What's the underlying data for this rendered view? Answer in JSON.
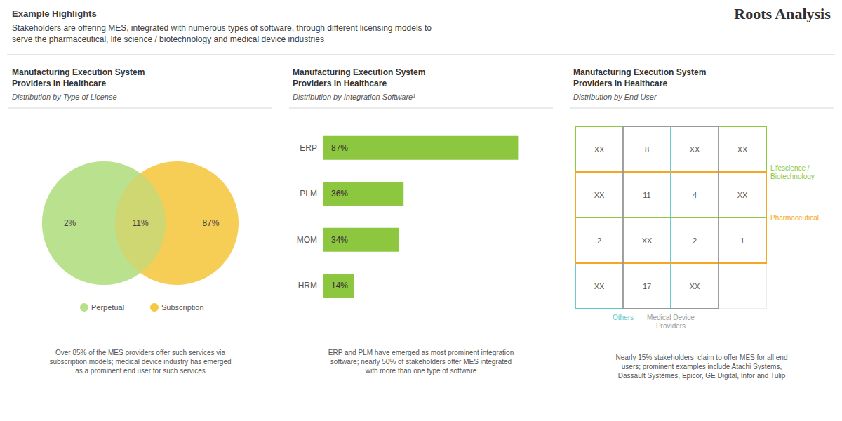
{
  "title": "Example Highlights",
  "subtitle": "Stakeholders are offering MES, integrated with numerous types of software, through different licensing models to\nserve the pharmaceutical, life science / biotechnology and medical device industries",
  "annotations": [
    "Roots Analysis"
  ],
  "chart_data": [
    {
      "type": "venn",
      "title": "Manufacturing Execution System\nProviders in Healthcare",
      "subtitle": "Distribution by Type of License",
      "values": [
        2,
        11,
        87
      ],
      "value_labels": [
        "2%",
        "11%",
        "87%"
      ],
      "series": [
        {
          "name": "Perpetual",
          "color": "#b8e08a"
        },
        {
          "name": "Subscription",
          "color": "#f5c842"
        }
      ],
      "annotations": [
        "Over 85% of the MES providers offer such services via\nsubscription models; medical device industry has emerged\nas a prominent end user for such services"
      ]
    },
    {
      "type": "bar",
      "orientation": "horizontal",
      "title": "Manufacturing Execution System\nProviders in Healthcare",
      "subtitle": "Distribution by Integration Software¹",
      "categories": [
        "ERP",
        "PLM",
        "MOM",
        "HRM"
      ],
      "values": [
        87,
        36,
        34,
        14
      ],
      "value_labels": [
        "87%",
        "36%",
        "34%",
        "14%"
      ],
      "data_labels": true,
      "color": "#8dc63f",
      "xlim": [
        0,
        100
      ],
      "grid": false,
      "tick_labels": "y",
      "annotations": [
        "ERP and PLM have emerged as most prominent integration\nsoftware; nearly 50% of stakeholders offer MES integrated\nwith more than one type of software"
      ]
    },
    {
      "type": "matrix",
      "title": "Manufacturing Execution System\nProviders in Healthcare",
      "subtitle": "Distribution by End User",
      "cells": [
        [
          "XX",
          "8",
          "XX",
          "XX"
        ],
        [
          "XX",
          "11",
          "4",
          "XX"
        ],
        [
          "2",
          "XX",
          "2",
          "1"
        ],
        [
          "XX",
          "17",
          "XX",
          null
        ]
      ],
      "series": [
        {
          "name": "Others",
          "color": "#5bc8c8",
          "cols": [
            0,
            1
          ]
        },
        {
          "name": "Lifescience /\nBiotechnology",
          "color": "#8dc63f",
          "rows": [
            0,
            1
          ]
        },
        {
          "name": "Pharmaceutical",
          "color": "#f5a623",
          "rows": [
            1,
            2
          ]
        },
        {
          "name": "Medical Device\nProviders",
          "color": "#999999",
          "cols": [
            1,
            2
          ]
        }
      ],
      "annotations": [
        "Nearly 15% stakeholders  claim to offer MES for all end\nusers; prominent examples include Atachi Systems,\nDassault Systèmes, Epicor, GE Digital, Infor and Tulip"
      ]
    }
  ]
}
